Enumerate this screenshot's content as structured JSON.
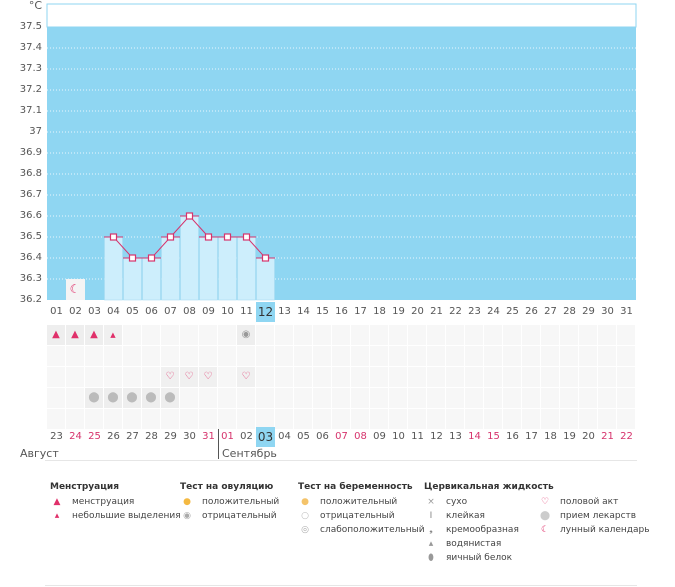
{
  "chart_data": {
    "type": "bar",
    "ylabel": "°C",
    "ylim": [
      36.2,
      37.5
    ],
    "yticks": [
      "37.5",
      "37.4",
      "37.3",
      "37.2",
      "37.1",
      "37",
      "36.9",
      "36.8",
      "36.7",
      "36.6",
      "36.5",
      "36.4",
      "36.3",
      "36.2"
    ],
    "cycle_days": [
      "01",
      "02",
      "03",
      "04",
      "05",
      "06",
      "07",
      "08",
      "09",
      "10",
      "11",
      "12",
      "13",
      "14",
      "15",
      "16",
      "17",
      "18",
      "19",
      "20",
      "21",
      "22",
      "23",
      "24",
      "25",
      "26",
      "27",
      "28",
      "29",
      "30",
      "31"
    ],
    "current_cycle_day": "12",
    "temperatures": [
      null,
      null,
      null,
      36.5,
      36.4,
      36.4,
      36.5,
      36.6,
      36.5,
      36.5,
      36.5,
      36.4,
      null,
      null,
      null,
      null,
      null,
      null,
      null,
      null,
      null,
      null,
      null,
      null,
      null,
      null,
      null,
      null,
      null,
      null,
      null
    ],
    "grid": true,
    "series_color": "#d6336c",
    "background_color": "#8fd6f2",
    "bar_color": "#cdeefc"
  },
  "markers": {
    "moon_days": [
      2
    ],
    "menstruation": [
      1,
      2,
      3
    ],
    "spotting": [
      4
    ],
    "ovulation_negative": [
      11
    ],
    "intercourse": [
      7,
      8,
      9,
      11
    ],
    "medication": [
      3,
      4,
      5,
      6,
      7
    ]
  },
  "dates": [
    "23",
    "24",
    "25",
    "26",
    "27",
    "28",
    "29",
    "30",
    "31",
    "01",
    "02",
    "03",
    "04",
    "05",
    "06",
    "07",
    "08",
    "09",
    "10",
    "11",
    "12",
    "13",
    "14",
    "15",
    "16",
    "17",
    "18",
    "19",
    "20",
    "21",
    "22"
  ],
  "weekend_dates": [
    2,
    3,
    9,
    10,
    16,
    17,
    23,
    24,
    30,
    31
  ],
  "current_date_index": 12,
  "months": [
    "Август",
    "Сентябрь"
  ],
  "legend": [
    {
      "title": "Менструация",
      "items": [
        {
          "icon": "menstruation-icon",
          "label": "менструация"
        },
        {
          "icon": "spotting-icon",
          "label": "небольшие выделения"
        }
      ]
    },
    {
      "title": "Тест на овуляцию",
      "items": [
        {
          "icon": "ovulation-positive-icon",
          "label": "положительный"
        },
        {
          "icon": "ovulation-negative-icon",
          "label": "отрицательный"
        }
      ]
    },
    {
      "title": "Тест на беременность",
      "items": [
        {
          "icon": "pregnancy-positive-icon",
          "label": "положительный"
        },
        {
          "icon": "pregnancy-negative-icon",
          "label": "отрицательный"
        },
        {
          "icon": "pregnancy-weak-icon",
          "label": "слабоположительный"
        }
      ]
    },
    {
      "title": "Цервикальная жидкость",
      "items": [
        {
          "icon": "dry-icon",
          "label": "сухо"
        },
        {
          "icon": "sticky-icon",
          "label": "клейкая"
        },
        {
          "icon": "creamy-icon",
          "label": "кремообразная"
        },
        {
          "icon": "watery-icon",
          "label": "водянистая"
        },
        {
          "icon": "egg-white-icon",
          "label": "яичный белок"
        }
      ]
    },
    {
      "title": "",
      "items": [
        {
          "icon": "heart-icon",
          "label": "половой акт"
        },
        {
          "icon": "pill-icon",
          "label": "прием лекарств"
        },
        {
          "icon": "moon-icon",
          "label": "лунный календарь"
        }
      ]
    }
  ]
}
